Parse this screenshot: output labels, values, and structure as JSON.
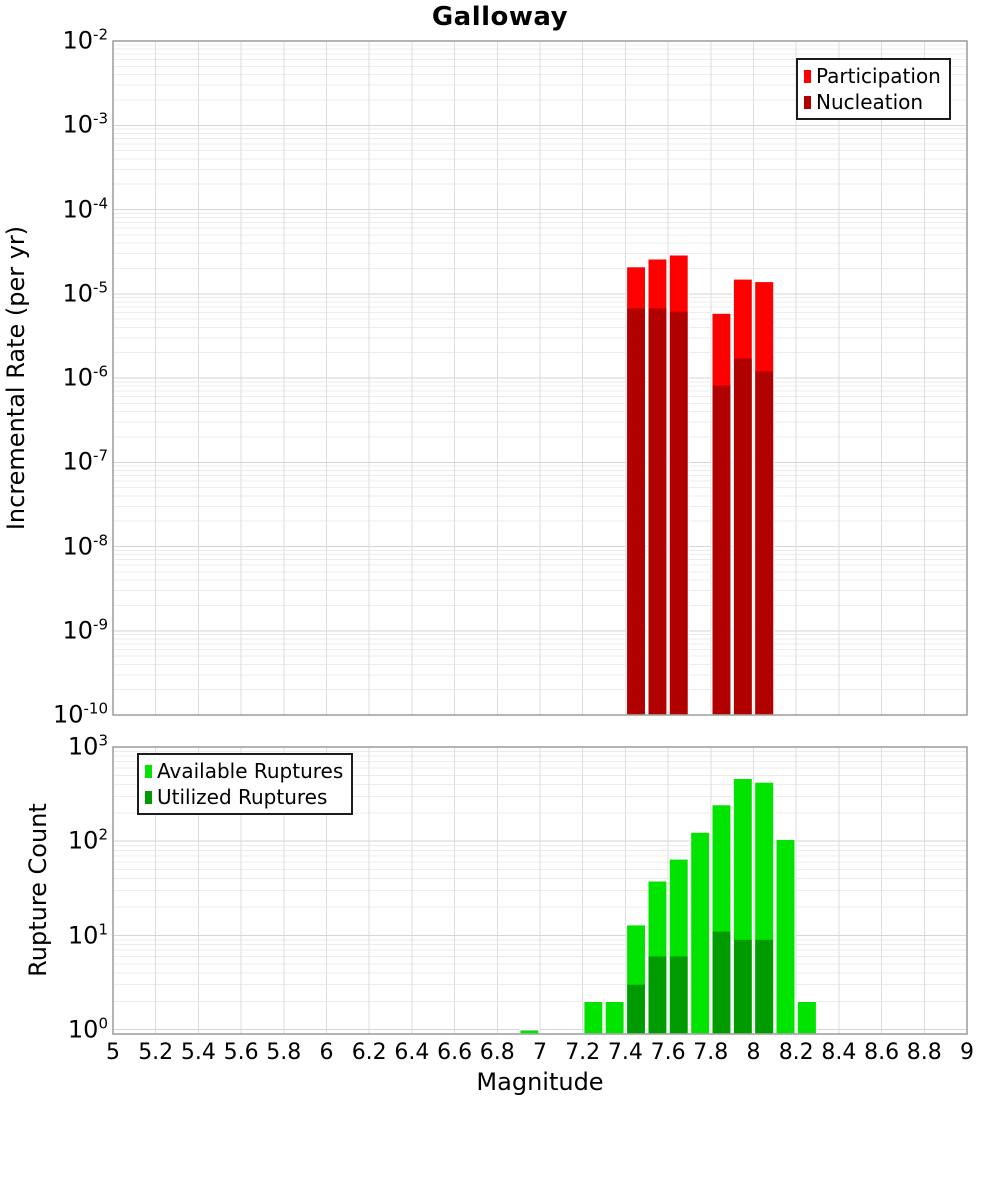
{
  "title": "Galloway",
  "panels": {
    "rate": {
      "ylabel": "Incremental Rate (per yr)",
      "legend": [
        {
          "label": "Participation",
          "color": "#ff0000"
        },
        {
          "label": "Nucleation",
          "color": "#b00000"
        }
      ]
    },
    "count": {
      "ylabel": "Rupture Count",
      "xlabel": "Magnitude",
      "legend": [
        {
          "label": "Available Ruptures",
          "color": "#00e400"
        },
        {
          "label": "Utilized Ruptures",
          "color": "#009b00"
        }
      ]
    }
  },
  "chart_data": [
    {
      "type": "bar",
      "panel": "rate",
      "title": "Galloway",
      "ylabel": "Incremental Rate (per yr)",
      "yscale": "log",
      "xlim": [
        5,
        9
      ],
      "ylim": [
        1e-10,
        0.01
      ],
      "xtick_step": 0.2,
      "show_xtick_labels": false,
      "ytick_exponents": [
        -2,
        -3,
        -4,
        -5,
        -6,
        -7,
        -8,
        -9,
        -10
      ],
      "bin_width": 0.1,
      "grid": true,
      "legend_position": "top-right",
      "series": [
        {
          "name": "Participation",
          "color": "#ff0000",
          "x": [
            7.45,
            7.55,
            7.65,
            7.85,
            7.95,
            8.05
          ],
          "values": [
            2.1e-05,
            2.6e-05,
            2.9e-05,
            5.9e-06,
            1.5e-05,
            1.4e-05
          ]
        },
        {
          "name": "Nucleation",
          "color": "#b00000",
          "x": [
            7.45,
            7.55,
            7.65,
            7.85,
            7.95,
            8.05
          ],
          "values": [
            6.7e-06,
            6.7e-06,
            6.1e-06,
            8.1e-07,
            1.7e-06,
            1.2e-06
          ]
        }
      ]
    },
    {
      "type": "bar",
      "panel": "count",
      "ylabel": "Rupture Count",
      "xlabel": "Magnitude",
      "yscale": "log",
      "xlim": [
        5,
        9
      ],
      "ylim": [
        0.9,
        1000
      ],
      "xtick_step": 0.2,
      "show_xtick_labels": true,
      "ytick_exponents": [
        3,
        2,
        1,
        0
      ],
      "bin_width": 0.1,
      "grid": true,
      "legend_position": "top-left",
      "series": [
        {
          "name": "Available Ruptures",
          "color": "#00e400",
          "x": [
            6.95,
            7.25,
            7.35,
            7.45,
            7.55,
            7.65,
            7.75,
            7.85,
            7.95,
            8.05,
            8.15,
            8.25
          ],
          "values": [
            1,
            2,
            2,
            13,
            38,
            65,
            125,
            245,
            465,
            425,
            105,
            2
          ]
        },
        {
          "name": "Utilized Ruptures",
          "color": "#009b00",
          "x": [
            7.45,
            7.55,
            7.65,
            7.85,
            7.95,
            8.05
          ],
          "values": [
            3,
            6,
            6,
            11,
            9,
            9
          ]
        }
      ]
    }
  ]
}
